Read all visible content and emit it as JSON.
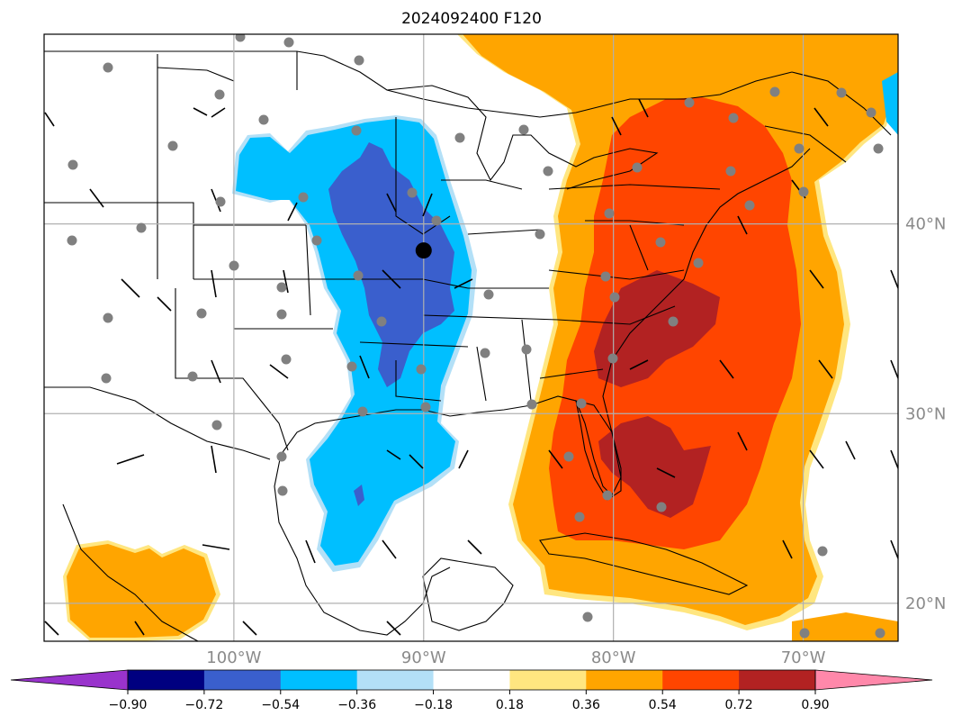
{
  "title": "2024092400 F120",
  "map": {
    "lon_range": [
      -110,
      -65
    ],
    "lat_range": [
      18,
      50
    ],
    "grid": true,
    "lat_labels": [
      {
        "lat": 40,
        "text": "40°N"
      },
      {
        "lat": 30,
        "text": "30°N"
      },
      {
        "lat": 20,
        "text": "20°N"
      }
    ],
    "lon_labels": [
      {
        "lon": -100,
        "text": "100°W"
      },
      {
        "lon": -90,
        "text": "90°W"
      },
      {
        "lon": -80,
        "text": "80°W"
      },
      {
        "lon": -70,
        "text": "70°W"
      }
    ],
    "marker": {
      "lon": -90.0,
      "lat": 38.6
    }
  },
  "colorbar": {
    "labels": [
      "−0.90",
      "−0.72",
      "−0.54",
      "−0.36",
      "−0.18",
      "0.18",
      "0.36",
      "0.54",
      "0.72",
      "0.90"
    ],
    "colors": [
      "#9933cc",
      "#000080",
      "#3a5fcd",
      "#00bfff",
      "#b3e0f7",
      "#ffffff",
      "#ffe680",
      "#ffa500",
      "#ff4500",
      "#b22222",
      "#ff88aa"
    ]
  }
}
